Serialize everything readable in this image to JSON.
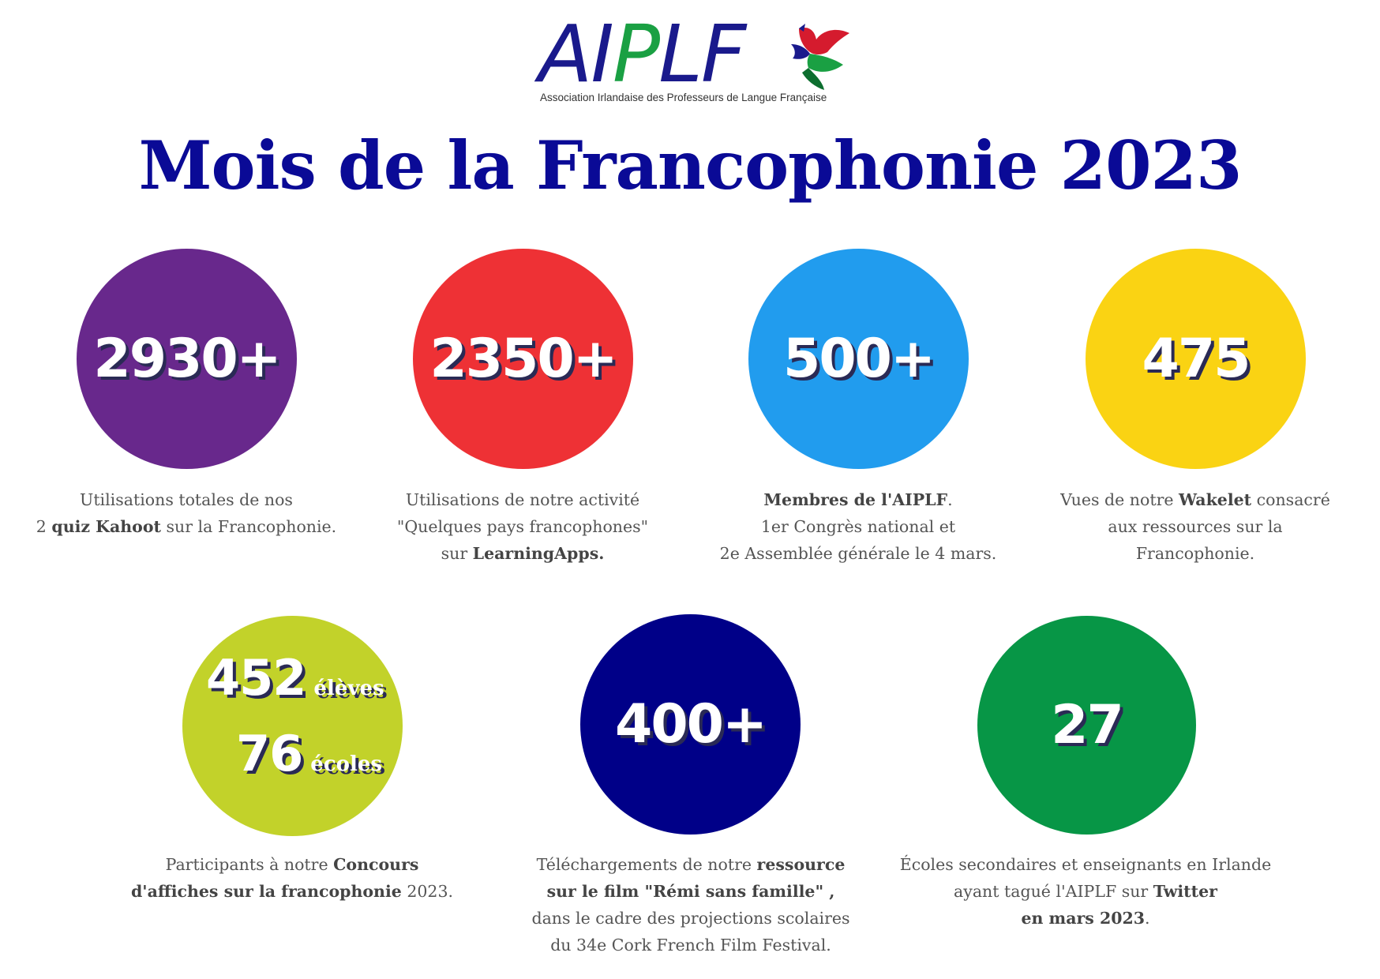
{
  "logo": {
    "text_part1": "AI",
    "text_green": "P",
    "text_part2": "LF",
    "subtitle": "Association Irlandaise des Professeurs de Langue Française"
  },
  "title": "Mois de la Francophonie 2023",
  "colors": {
    "title": "#0a0a96",
    "purple": "#68288c",
    "red": "#ee3135",
    "blue": "#219cee",
    "yellow": "#fad313",
    "lime": "#c2d22a",
    "navy": "#000088",
    "green": "#079646"
  },
  "stats": [
    {
      "value": "2930+",
      "desc": [
        [
          {
            "t": "Utilisations totales de nos"
          }
        ],
        [
          {
            "t": "2 "
          },
          {
            "t": "quiz Kahoot",
            "b": true
          },
          {
            "t": " sur la Francophonie."
          }
        ]
      ]
    },
    {
      "value": "2350+",
      "desc": [
        [
          {
            "t": "Utilisations de notre activité"
          }
        ],
        [
          {
            "t": "\"Quelques pays francophones\""
          }
        ],
        [
          {
            "t": "sur "
          },
          {
            "t": "LearningApps.",
            "b": true
          }
        ]
      ]
    },
    {
      "value": "500+",
      "desc": [
        [
          {
            "t": "Membres de l'AIPLF",
            "b": true
          },
          {
            "t": "."
          }
        ],
        [
          {
            "t": "1er Congrès national et"
          }
        ],
        [
          {
            "t": "2e Assemblée générale le 4 mars."
          }
        ]
      ]
    },
    {
      "value": "475",
      "desc": [
        [
          {
            "t": "Vues de notre "
          },
          {
            "t": "Wakelet",
            "b": true
          },
          {
            "t": " consacré"
          }
        ],
        [
          {
            "t": "aux ressources sur la"
          }
        ],
        [
          {
            "t": "Francophonie."
          }
        ]
      ]
    },
    {
      "value_a": "452",
      "label_a": "élèves",
      "value_b": "76",
      "label_b": "écoles",
      "desc": [
        [
          {
            "t": "Participants à notre "
          },
          {
            "t": "Concours",
            "b": true
          }
        ],
        [
          {
            "t": "d'affiches sur la francophonie",
            "b": true
          },
          {
            "t": " 2023."
          }
        ]
      ]
    },
    {
      "value": "400+",
      "desc": [
        [
          {
            "t": "Téléchargements de notre "
          },
          {
            "t": "ressource",
            "b": true
          }
        ],
        [
          {
            "t": "sur le film \"Rémi sans famille\" ,",
            "b": true
          }
        ],
        [
          {
            "t": "dans le cadre des projections scolaires"
          }
        ],
        [
          {
            "t": "du 34e Cork French Film Festival."
          }
        ]
      ]
    },
    {
      "value": "27",
      "desc": [
        [
          {
            "t": "Écoles secondaires et enseignants en Irlande"
          }
        ],
        [
          {
            "t": "ayant tagué l'AIPLF sur "
          },
          {
            "t": "Twitter",
            "b": true
          }
        ],
        [
          {
            "t": "en mars 2023",
            "b": true
          },
          {
            "t": "."
          }
        ]
      ]
    }
  ]
}
